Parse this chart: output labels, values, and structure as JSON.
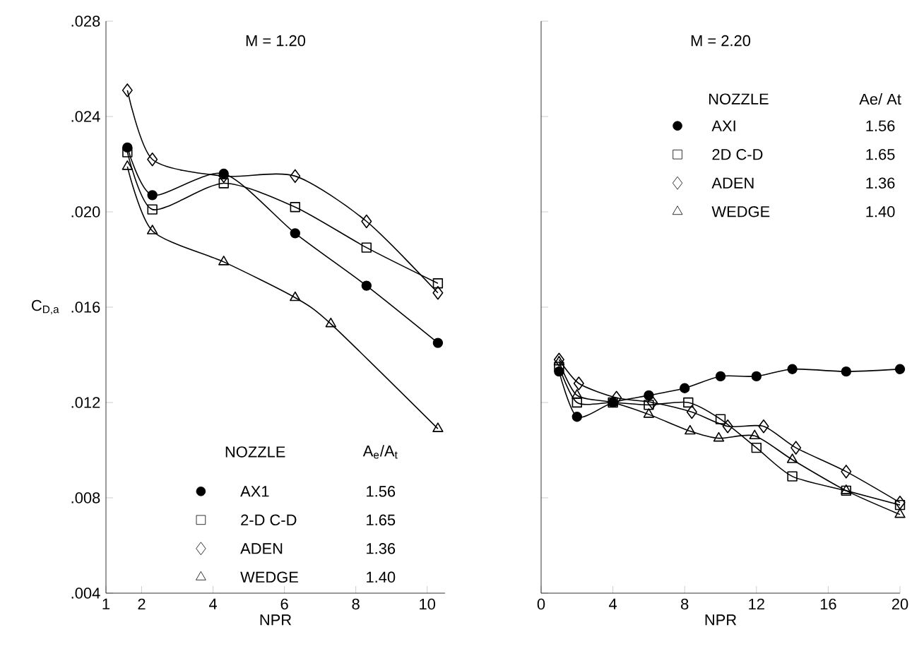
{
  "chart_data": [
    {
      "type": "line",
      "title": "M = 1.20",
      "xlabel": "NPR",
      "ylabel": "C$_{D,a}$",
      "legend_title": "NOZZLE",
      "legend": "bottom",
      "line_style": "solid",
      "annotations": [
        "A$_{e}$/A$_{t}$",
        "1.56",
        "1.65",
        "1.36",
        "1.40"
      ],
      "xlim": [
        1,
        10.5
      ],
      "xticks": [
        1,
        2,
        4,
        6,
        8,
        10
      ],
      "ylim": [
        0.004,
        0.028
      ],
      "yticks": [
        {
          "value": 0.004,
          "label": ".004"
        },
        {
          "value": 0.008,
          "label": ".008"
        },
        {
          "value": 0.012,
          "label": ".012"
        },
        {
          "value": 0.016,
          "label": ".016"
        },
        {
          "value": 0.02,
          "label": ".020"
        },
        {
          "value": 0.024,
          "label": ".024"
        },
        {
          "value": 0.028,
          "label": ".028"
        }
      ],
      "series": [
        {
          "name": "AX1",
          "color": "#000000",
          "marker": "circle",
          "x": [
            1.6,
            2.3,
            4.3,
            6.3,
            8.3,
            10.3
          ],
          "values": [
            0.0227,
            0.0207,
            0.0216,
            0.0191,
            0.0169,
            0.0145
          ]
        },
        {
          "name": "2-D C-D",
          "color": "#000000",
          "marker": "square",
          "x": [
            1.6,
            2.3,
            4.3,
            6.3,
            8.3,
            10.3
          ],
          "values": [
            0.0225,
            0.0201,
            0.0212,
            0.0202,
            0.0185,
            0.017
          ]
        },
        {
          "name": "ADEN",
          "color": "#000000",
          "marker": "diamond",
          "x": [
            1.6,
            2.3,
            4.3,
            6.3,
            8.3,
            10.3
          ],
          "values": [
            0.0251,
            0.0222,
            0.0215,
            0.0215,
            0.0196,
            0.0166
          ]
        },
        {
          "name": "WEDGE",
          "color": "#000000",
          "marker": "triangle",
          "x": [
            1.6,
            2.3,
            4.3,
            6.3,
            7.3,
            10.3
          ],
          "values": [
            0.0219,
            0.0192,
            0.0179,
            0.0164,
            0.0153,
            0.0109
          ]
        }
      ]
    },
    {
      "type": "line",
      "title": "M = 2.20",
      "xlabel": "NPR",
      "legend_title": "NOZZLE",
      "legend": "top right",
      "line_style": "solid",
      "tick_labels": "x",
      "annotations": [
        "Ae/ At",
        "1.56",
        "1.65",
        "1.36",
        "1.40"
      ],
      "xlim": [
        0,
        20
      ],
      "xticks": [
        0,
        4,
        8,
        12,
        16,
        20
      ],
      "ylim": [
        0.004,
        0.028
      ],
      "yticks": [
        0.004,
        0.008,
        0.012,
        0.016,
        0.02,
        0.024,
        0.028
      ],
      "series": [
        {
          "name": "AXI",
          "color": "#000000",
          "marker": "circle",
          "x": [
            1,
            2,
            4,
            6,
            8,
            10,
            12,
            14,
            17,
            20
          ],
          "values": [
            0.0133,
            0.0114,
            0.012,
            0.0123,
            0.0126,
            0.0131,
            0.0131,
            0.0134,
            0.0133,
            0.0134
          ]
        },
        {
          "name": "2D C-D",
          "color": "#000000",
          "marker": "square",
          "x": [
            1,
            2,
            4,
            6,
            8.2,
            10,
            12,
            14,
            17,
            20
          ],
          "values": [
            0.0135,
            0.012,
            0.012,
            0.0119,
            0.012,
            0.0113,
            0.0101,
            0.0089,
            0.0083,
            0.0077
          ]
        },
        {
          "name": "ADEN",
          "color": "#000000",
          "marker": "diamond",
          "x": [
            1,
            2.1,
            4.2,
            6.2,
            8.4,
            10.4,
            12.4,
            14.2,
            17,
            20
          ],
          "values": [
            0.0138,
            0.0128,
            0.0122,
            0.012,
            0.0116,
            0.011,
            0.011,
            0.0101,
            0.0091,
            0.0078
          ]
        },
        {
          "name": "WEDGE",
          "color": "#000000",
          "marker": "triangle",
          "x": [
            1,
            2,
            4,
            6,
            8.3,
            9.9,
            11.9,
            14,
            17,
            20
          ],
          "values": [
            0.0137,
            0.0123,
            0.012,
            0.0115,
            0.0108,
            0.0105,
            0.0106,
            0.0096,
            0.0083,
            0.0073
          ]
        }
      ]
    }
  ]
}
